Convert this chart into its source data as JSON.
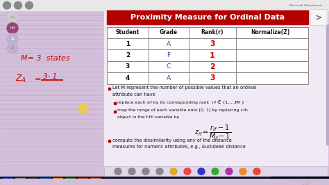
{
  "title": "Proximity Measure for Ordinal Data",
  "title_bg": "#b50000",
  "title_color": "#ffffff",
  "bg_color": "#d4bfda",
  "content_bg": "#f0eaf5",
  "table_headers": [
    "Student",
    "Grade",
    "Rank(r)",
    "Normalize(Z)"
  ],
  "table_rows": [
    [
      "1",
      "A",
      "3",
      ""
    ],
    [
      "2",
      "F",
      "1",
      ""
    ],
    [
      "3",
      "C",
      "2",
      ""
    ],
    [
      "4",
      "A",
      "3",
      ""
    ]
  ],
  "rank_color": "#cc0000",
  "grade_color": "#5533aa",
  "student_color": "#111111",
  "header_color": "#111111",
  "bullet1": "Let M represent the number of possible values that an ordinal",
  "bullet1b": "attribute can have",
  "sub1": "replace each x",
  "sub1b": " by its corresponding rank  r",
  "sub1c": "  ∈ {1,...,M",
  "sub1d": " }",
  "sub2a": "map the range of each variable onto [0, 1] by replacing i-th",
  "sub2b": "object in the f-th variable by",
  "bullet2a": "compute the dissimilarity using any of the distance",
  "bullet2b": "measures for numeric attributes, e.g., Euclidean distance",
  "left_m": "M= 3  states",
  "left_color": "#cc0000",
  "top_bar_color": "#e8e8e8",
  "taskbar_color": "#181828",
  "tools_bar_color": "#e0d8ea",
  "right_arrow_bg": "#f0f0f0",
  "cursor_color": "#eecc44",
  "small_bullet_color": "#aa0000"
}
